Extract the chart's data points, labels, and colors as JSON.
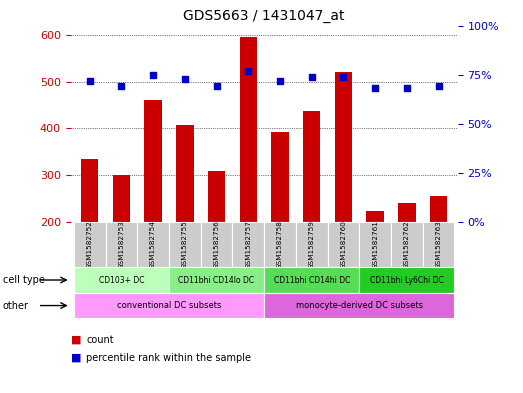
{
  "title": "GDS5663 / 1431047_at",
  "samples": [
    "GSM1582752",
    "GSM1582753",
    "GSM1582754",
    "GSM1582755",
    "GSM1582756",
    "GSM1582757",
    "GSM1582758",
    "GSM1582759",
    "GSM1582760",
    "GSM1582761",
    "GSM1582762",
    "GSM1582763"
  ],
  "counts": [
    335,
    300,
    460,
    408,
    310,
    595,
    393,
    437,
    520,
    224,
    240,
    255
  ],
  "percentiles": [
    72,
    69,
    75,
    73,
    69,
    77,
    72,
    74,
    74,
    68,
    68,
    69
  ],
  "ylim_left": [
    200,
    620
  ],
  "ylim_right": [
    0,
    100
  ],
  "yticks_left": [
    200,
    300,
    400,
    500,
    600
  ],
  "yticks_right": [
    0,
    25,
    50,
    75,
    100
  ],
  "cell_type_groups": [
    {
      "label": "CD103+ DC",
      "start": 0,
      "end": 2
    },
    {
      "label": "CD11bhi CD14lo DC",
      "start": 3,
      "end": 5
    },
    {
      "label": "CD11bhi CD14hi DC",
      "start": 6,
      "end": 8
    },
    {
      "label": "CD11bhi Ly6Chi DC",
      "start": 9,
      "end": 11
    }
  ],
  "cell_type_colors": [
    "#bbffbb",
    "#88ee88",
    "#55dd55",
    "#22cc22"
  ],
  "other_groups": [
    {
      "label": "conventional DC subsets",
      "start": 0,
      "end": 5
    },
    {
      "label": "monocyte-derived DC subsets",
      "start": 6,
      "end": 11
    }
  ],
  "other_colors": [
    "#ff99ff",
    "#dd66dd"
  ],
  "bar_color": "#cc0000",
  "dot_color": "#0000cc",
  "grid_color": "#000000",
  "background_color": "#ffffff",
  "sample_box_color": "#cccccc",
  "left_axis_color": "#cc0000",
  "right_axis_color": "#0000cc",
  "left_label": "cell type",
  "other_label": "other",
  "legend_count": "count",
  "legend_pct": "percentile rank within the sample"
}
